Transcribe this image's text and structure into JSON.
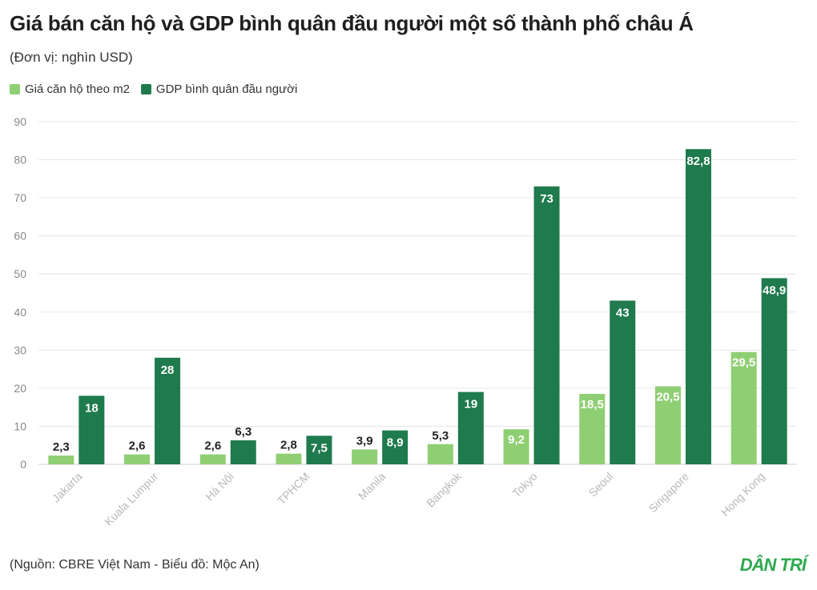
{
  "header": {
    "title": "Giá bán căn hộ và GDP bình quân đầu người một số thành phố châu Á",
    "subtitle": "(Đơn vị: nghìn USD)"
  },
  "footer": {
    "source": "(Nguồn: CBRE Việt Nam - Biểu đồ: Mộc An)",
    "logo": "DÂN TRÍ"
  },
  "colors": {
    "light": "#8fcf73",
    "dark": "#1f7a4d",
    "grid": "#e6e6e6"
  },
  "chart_data": {
    "type": "bar",
    "title": "Giá bán căn hộ và GDP bình quân đầu người một số thành phố châu Á",
    "ylabel": "",
    "xlabel": "",
    "ylim": [
      0,
      90
    ],
    "yticks": [
      0,
      10,
      20,
      30,
      40,
      50,
      60,
      70,
      80,
      90
    ],
    "categories": [
      "Jakarta",
      "Kuala Lumpur",
      "Hà Nội",
      "TPHCM",
      "Manila",
      "Bangkok",
      "Tokyo",
      "Seoul",
      "Singapore",
      "Hong Kong"
    ],
    "series": [
      {
        "name": "Giá căn hộ theo m2",
        "values": [
          2.3,
          2.6,
          2.6,
          2.8,
          3.9,
          5.3,
          9.2,
          18.5,
          20.5,
          29.5
        ],
        "labels": [
          "2,3",
          "2,6",
          "2,6",
          "2,8",
          "3,9",
          "5,3",
          "9,2",
          "18,5",
          "20,5",
          "29,5"
        ]
      },
      {
        "name": "GDP bình quân đầu người",
        "values": [
          18,
          28,
          6.3,
          7.5,
          8.9,
          19,
          73,
          43,
          82.8,
          48.9
        ],
        "labels": [
          "18",
          "28",
          "6,3",
          "7,5",
          "8,9",
          "19",
          "73",
          "43",
          "82,8",
          "48,9"
        ]
      }
    ],
    "legend": "top-left",
    "grid": true
  }
}
